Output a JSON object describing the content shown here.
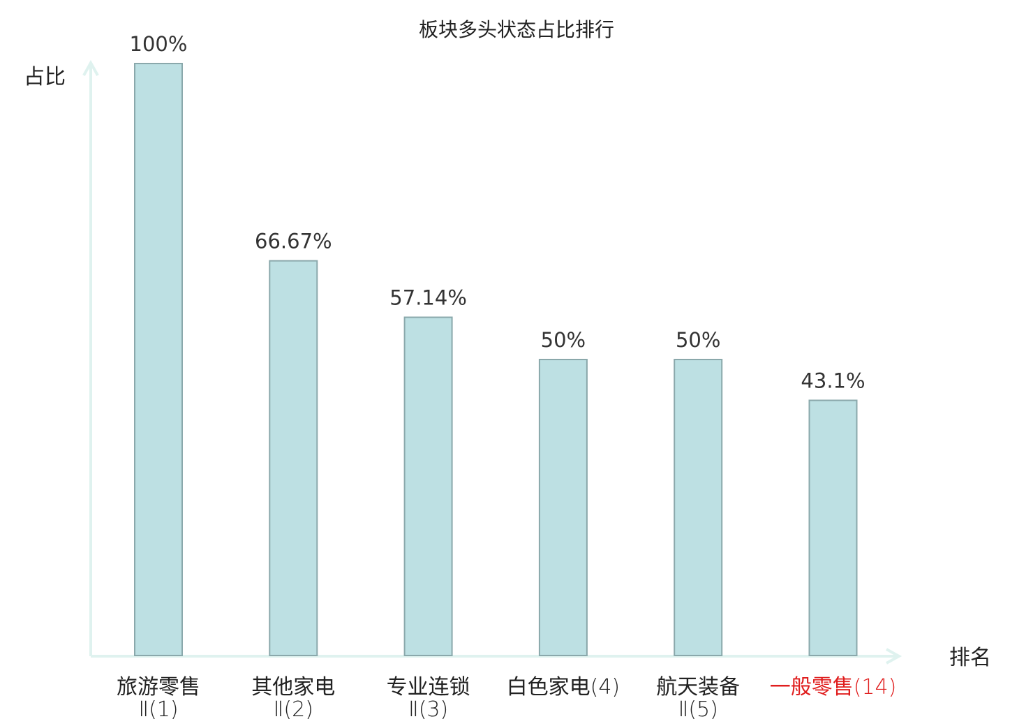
{
  "chart_data": {
    "type": "bar",
    "title": "板块多头状态占比排行",
    "ylabel": "占比",
    "xlabel": "排名",
    "ylim": [
      0,
      100
    ],
    "grid": false,
    "categories": [
      {
        "name": "旅游零售",
        "rank": "Ⅱ(1)",
        "highlight": false
      },
      {
        "name": "其他家电",
        "rank": "Ⅱ(2)",
        "highlight": false
      },
      {
        "name": "专业连锁",
        "rank": "Ⅱ(3)",
        "highlight": false
      },
      {
        "name": "白色家电",
        "rank": "(4)",
        "highlight": false
      },
      {
        "name": "航天装备",
        "rank": "Ⅱ(5)",
        "highlight": false
      },
      {
        "name": "一般零售",
        "rank": "(14)",
        "highlight": true
      }
    ],
    "values": [
      100,
      66.67,
      57.14,
      50,
      50,
      43.1
    ],
    "value_labels": [
      "100%",
      "66.67%",
      "57.14%",
      "50%",
      "50%",
      "43.1%"
    ],
    "colors": {
      "bar_fill": "#bde0e3",
      "bar_stroke": "#8aa8ab",
      "axis": "#dff2ef",
      "text": "#222222",
      "value_text": "#333333",
      "highlight_text": "#e01e1e"
    }
  }
}
